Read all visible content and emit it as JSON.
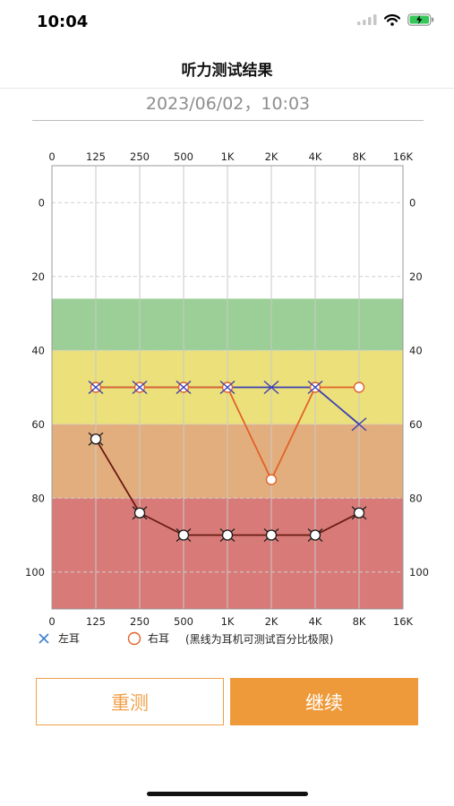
{
  "status_bar": {
    "time": "10:04"
  },
  "header": {
    "title": "听力测试结果"
  },
  "test_datetime": "2023/06/02，10:03",
  "chart_data": {
    "type": "line",
    "title": "",
    "x_categories": [
      "0",
      "125",
      "250",
      "500",
      "1K",
      "2K",
      "4K",
      "8K",
      "16K"
    ],
    "y_ticks": [
      0,
      20,
      40,
      60,
      80,
      100
    ],
    "y_reversed": true,
    "ylim": [
      -10,
      110
    ],
    "bands": [
      {
        "from": 26,
        "to": 40,
        "color": "#9ccf97"
      },
      {
        "from": 40,
        "to": 60,
        "color": "#ece07a"
      },
      {
        "from": 60,
        "to": 80,
        "color": "#e3ae7d"
      },
      {
        "from": 80,
        "to": 110,
        "color": "#d87b78"
      }
    ],
    "series": [
      {
        "key": "left_ear",
        "color": "#3b3fb2",
        "marker": "x",
        "points": [
          [
            1,
            50
          ],
          [
            2,
            50
          ],
          [
            3,
            50
          ],
          [
            4,
            50
          ],
          [
            5,
            50
          ],
          [
            6,
            50
          ],
          [
            7,
            60
          ]
        ]
      },
      {
        "key": "right_ear",
        "color": "#e0632a",
        "marker": "circle",
        "points": [
          [
            1,
            50
          ],
          [
            2,
            50
          ],
          [
            3,
            50
          ],
          [
            4,
            50
          ],
          [
            5,
            75
          ],
          [
            6,
            50
          ],
          [
            7,
            50
          ]
        ]
      },
      {
        "key": "headphone_limit",
        "color": "#6a1a10",
        "marker": "circle-x",
        "points": [
          [
            1,
            64
          ],
          [
            2,
            84
          ],
          [
            3,
            90
          ],
          [
            4,
            90
          ],
          [
            5,
            90
          ],
          [
            6,
            90
          ],
          [
            7,
            84
          ]
        ]
      }
    ],
    "grid": true
  },
  "legend": {
    "left_ear": "左耳",
    "right_ear": "右耳",
    "note": "(黑线为耳机可测试百分比极限)"
  },
  "buttons": {
    "retest": "重测",
    "continue": "继续"
  },
  "colors": {
    "accent": "#ef9a3a",
    "left_ear": "#3b7fd0",
    "right_ear": "#e0632a"
  }
}
